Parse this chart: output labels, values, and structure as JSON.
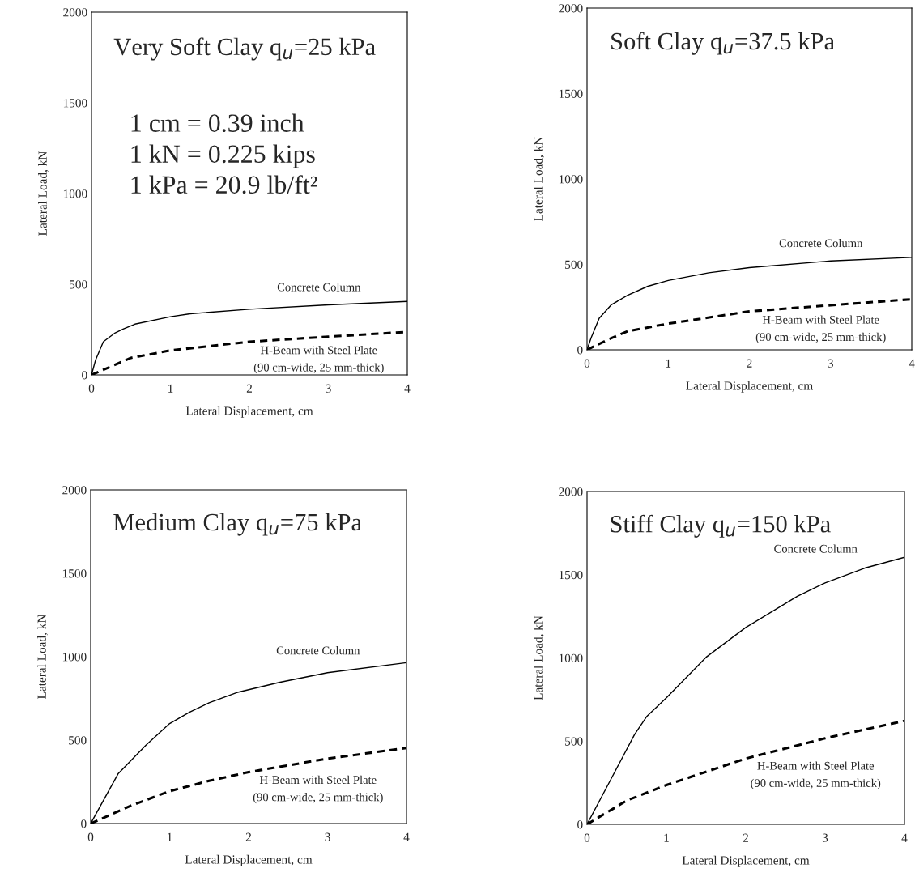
{
  "chart_data": [
    {
      "type": "line",
      "title": "Very Soft Clay q$_{u}$=25 kPa",
      "xlabel": "Lateral Displacement, cm",
      "ylabel": "Lateral Load, kN",
      "xlim": [
        0,
        4
      ],
      "ylim": [
        0,
        2000
      ],
      "xticks": [
        0,
        1,
        2,
        3,
        4
      ],
      "yticks": [
        0,
        500,
        1000,
        1500,
        2000
      ],
      "grid": false,
      "annotations": [
        "1 cm = 0.39 inch",
        "1 kN = 0.225 kips",
        "1 kPa = 20.9 lb/ft²"
      ],
      "series": [
        {
          "name": "Concrete Column",
          "color": "#000000",
          "line_style": "solid",
          "x": [
            0,
            0.05,
            0.15,
            0.3,
            0.4,
            0.55,
            1,
            1.25,
            2,
            3,
            4
          ],
          "values": [
            0,
            80,
            183,
            232,
            253,
            280,
            321,
            337,
            362,
            386,
            405
          ]
        },
        {
          "name": "H-Beam with Steel Plate\n(90 cm-wide, 25 mm-thick)",
          "color": "#000000",
          "line_style": "dashed",
          "x": [
            0,
            0.5,
            1,
            1.5,
            2,
            3,
            4
          ],
          "values": [
            0,
            94,
            135,
            159,
            183,
            211,
            237
          ]
        }
      ]
    },
    {
      "type": "line",
      "title": "Soft Clay q$_{u}$=37.5 kPa",
      "xlabel": "Lateral Displacement, cm",
      "ylabel": "Lateral Load, kN",
      "xlim": [
        0,
        4
      ],
      "ylim": [
        0,
        2000
      ],
      "xticks": [
        0,
        1,
        2,
        3,
        4
      ],
      "yticks": [
        0,
        500,
        1000,
        1500,
        2000
      ],
      "grid": false,
      "series": [
        {
          "name": "Concrete Column",
          "color": "#000000",
          "line_style": "solid",
          "x": [
            0,
            0.05,
            0.15,
            0.3,
            0.5,
            0.75,
            1,
            1.5,
            2,
            3,
            4
          ],
          "values": [
            0,
            70,
            185,
            264,
            319,
            372,
            406,
            451,
            481,
            520,
            541
          ]
        },
        {
          "name": "H-Beam with Steel Plate\n(90 cm-wide, 25 mm-thick)",
          "color": "#000000",
          "line_style": "dashed",
          "x": [
            0,
            0.25,
            0.5,
            1,
            2,
            3,
            4
          ],
          "values": [
            0,
            58,
            109,
            153,
            225,
            261,
            296
          ]
        }
      ]
    },
    {
      "type": "line",
      "title": "Medium Clay q$_{u}$=75 kPa",
      "xlabel": "Lateral Displacement, cm",
      "ylabel": "Lateral Load, kN",
      "xlim": [
        0,
        4
      ],
      "ylim": [
        0,
        2000
      ],
      "xticks": [
        0,
        1,
        2,
        3,
        4
      ],
      "yticks": [
        0,
        500,
        1000,
        1500,
        2000
      ],
      "grid": false,
      "series": [
        {
          "name": "Concrete Column",
          "color": "#000000",
          "line_style": "solid",
          "x": [
            0,
            0.35,
            0.7,
            1,
            1.25,
            1.5,
            1.85,
            2.4,
            3,
            4
          ],
          "values": [
            0,
            300,
            470,
            599,
            667,
            724,
            785,
            847,
            904,
            964
          ]
        },
        {
          "name": "H-Beam with Steel Plate\n(90 cm-wide, 25 mm-thick)",
          "color": "#000000",
          "line_style": "dashed",
          "x": [
            0,
            0.5,
            1,
            1.5,
            2,
            3,
            4
          ],
          "values": [
            0,
            105,
            194,
            256,
            308,
            389,
            453
          ]
        }
      ]
    },
    {
      "type": "line",
      "title": "Stiff Clay q$_{u}$=150 kPa",
      "xlabel": "Lateral Displacement, cm",
      "ylabel": "Lateral Load, kN",
      "xlim": [
        0,
        4
      ],
      "ylim": [
        0,
        2000
      ],
      "xticks": [
        0,
        1,
        2,
        3,
        4
      ],
      "yticks": [
        0,
        500,
        1000,
        1500,
        2000
      ],
      "grid": false,
      "series": [
        {
          "name": "Concrete Column",
          "color": "#000000",
          "line_style": "solid",
          "x": [
            0,
            0.3,
            0.6,
            0.75,
            1,
            1.5,
            2,
            2.65,
            3,
            3.5,
            4
          ],
          "values": [
            0,
            270,
            541,
            647,
            760,
            1004,
            1183,
            1370,
            1451,
            1540,
            1605
          ]
        },
        {
          "name": "H-Beam with Steel Plate\n(90 cm-wide, 25 mm-thick)",
          "color": "#000000",
          "line_style": "dashed",
          "x": [
            0,
            0.5,
            1,
            2,
            3,
            4
          ],
          "values": [
            0,
            143,
            236,
            395,
            517,
            622
          ]
        }
      ]
    }
  ]
}
